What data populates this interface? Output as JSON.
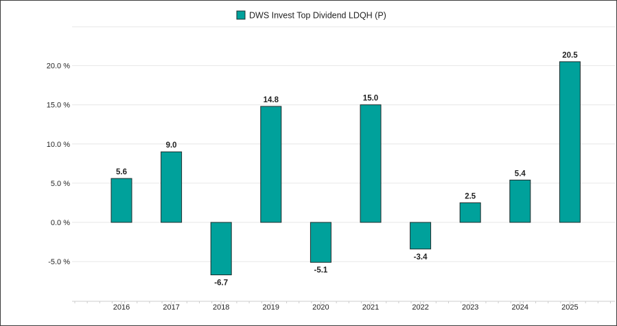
{
  "colors": {
    "bar_fill": "#00a19b",
    "bar_stroke": "#1f2b2b",
    "grid": "#e6e6e6",
    "axis": "#cccccc",
    "text": "#222222"
  },
  "legend": {
    "label": "DWS Invest Top Dividend LDQH (P)"
  },
  "chart_data": {
    "type": "bar",
    "categories": [
      "2016",
      "2017",
      "2018",
      "2019",
      "2020",
      "2021",
      "2022",
      "2023",
      "2024",
      "2025"
    ],
    "series": [
      {
        "name": "DWS Invest Top Dividend LDQH (P)",
        "values": [
          5.6,
          9.0,
          -6.7,
          14.8,
          -5.1,
          15.0,
          -3.4,
          2.5,
          5.4,
          20.5
        ],
        "labels": [
          "5.6",
          "9.0",
          "-6.7",
          "14.8",
          "-5.1",
          "15.0",
          "-3.4",
          "2.5",
          "5.4",
          "20.5"
        ]
      }
    ],
    "y_ticks": [
      -5,
      0,
      5,
      10,
      15,
      20
    ],
    "y_tick_labels": [
      "-5.0 %",
      "0.0 %",
      "5.0 %",
      "10.0 %",
      "15.0 %",
      "20.0 %"
    ],
    "ylim": [
      -10,
      25
    ],
    "legend_position": "top-center",
    "grid": true
  }
}
